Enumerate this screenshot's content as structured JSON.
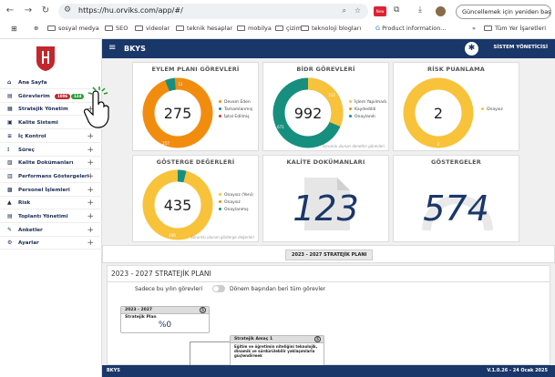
{
  "browser": {
    "url": "https://hu.orviks.com/app/#/",
    "update_label": "Güncellemek için yeniden başlat",
    "bookmarks": [
      "sosyal medya",
      "SEO",
      "videolar",
      "teknik hesaplar",
      "mobilya",
      "çizim",
      "teknoloji blogları",
      "Product information..."
    ],
    "all_bookmarks": "Tüm Yer İşaretleri",
    "new_badge": "New"
  },
  "header": {
    "brand": "BKYS",
    "user": "SİSTEM YÖNETİCİSİ"
  },
  "sidebar": {
    "items": [
      {
        "label": "Ana Sayfa",
        "icon": "home-icon",
        "plus": false
      },
      {
        "label": "Görevlerim",
        "icon": "task-icon",
        "plus": false,
        "badges": [
          "1006",
          "124"
        ]
      },
      {
        "label": "Stratejik Yönetim",
        "icon": "strategy-icon",
        "plus": true
      },
      {
        "label": "Kalite Sistemi",
        "icon": "quality-icon",
        "plus": true
      },
      {
        "label": "İç Kontrol",
        "icon": "control-icon",
        "plus": true
      },
      {
        "label": "Süreç",
        "icon": "process-icon",
        "plus": true
      },
      {
        "label": "Kalite Dokümanları",
        "icon": "document-icon",
        "plus": true
      },
      {
        "label": "Performans Göstergeleri",
        "icon": "chart-icon",
        "plus": true
      },
      {
        "label": "Personel İşlemleri",
        "icon": "personnel-icon",
        "plus": true
      },
      {
        "label": "Risk",
        "icon": "warning-icon",
        "plus": true
      },
      {
        "label": "Toplantı Yönetimi",
        "icon": "meeting-icon",
        "plus": true
      },
      {
        "label": "Anketler",
        "icon": "survey-icon",
        "plus": true
      },
      {
        "label": "Ayarlar",
        "icon": "gear-icon",
        "plus": true
      }
    ]
  },
  "cards": {
    "eylem": {
      "title": "EYLEM PLANI GÖREVLERİ",
      "total": "275",
      "seg_a": "257",
      "seg_b": "12",
      "legend": [
        "Devam Eden",
        "Tamamlanmış",
        "İptal Edilmiş"
      ]
    },
    "bidr": {
      "title": "BİDR GÖREVLERİ",
      "total": "992",
      "seg_a": "671",
      "seg_b": "312",
      "seg_c": "9",
      "legend": [
        "İşlem Yapılmadı",
        "Kaydedildi",
        "Onaylandı"
      ],
      "note": "Sorumlu olunan denetim görevleri"
    },
    "risk": {
      "title": "RİSK PUANLAMA",
      "total": "2",
      "seg_a": "2",
      "legend": [
        "Onaysız"
      ]
    },
    "gosterge": {
      "title": "GÖSTERGE DEĞERLERİ",
      "total": "435",
      "seg_a": "406",
      "legend": [
        "Onaysız (Yeni)",
        "Onaysız",
        "Onaylanmış"
      ],
      "note": "Sorumlu olunan gösterge değerleri"
    },
    "dokuman": {
      "title": "KALİTE DOKÜMANLARI",
      "value": "123"
    },
    "gostergeler": {
      "title": "GÖSTERGELER",
      "value": "574"
    }
  },
  "plan": {
    "button": "2023 - 2027 STRATEJİK PLANI",
    "heading": "2023 - 2027 STRATEJİK PLANI",
    "toggle_left": "Sadece bu yılın görevleri",
    "toggle_right": "Dönem başından beri tüm görevler",
    "node1": {
      "head": "2023 - 2027",
      "count": "5",
      "label": "Stratejik Plan",
      "pct": "%0"
    },
    "node2": {
      "head": "Stratejik Amaç 1",
      "count": "5",
      "text": "Eğitim ve öğretimin niteliğini teknolojik, dinamik ve sürdürülebilir yaklaşımlarla güçlendirmek"
    }
  },
  "footer": {
    "left": "BKYS",
    "right": "V.1.0.26 - 24 Ocak 2025"
  },
  "colors": {
    "navy": "#1a3769",
    "orange": "#f28c0f",
    "teal": "#178f7f",
    "yellow": "#f8c33a",
    "red": "#c2272d"
  }
}
